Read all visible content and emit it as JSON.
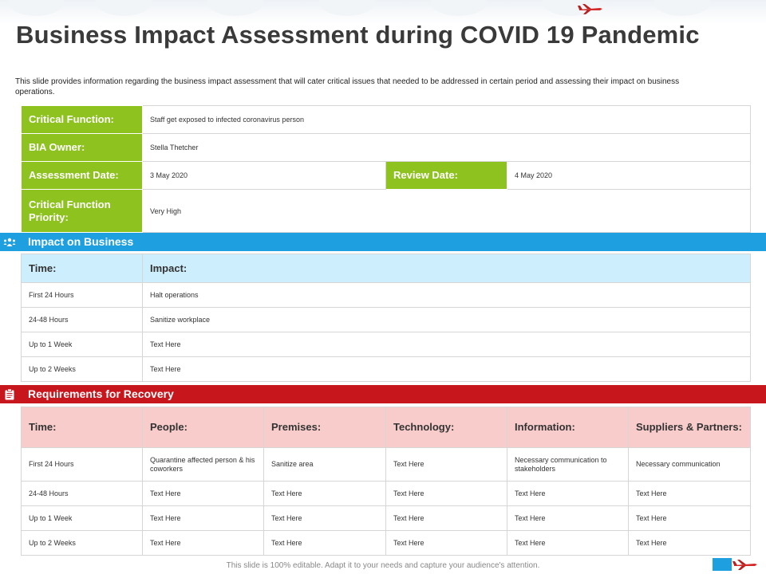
{
  "title": "Business Impact Assessment during COVID 19 Pandemic",
  "description": "This slide provides information regarding the business impact assessment that will cater critical issues that needed to be addressed in certain period and assessing their impact on business operations.",
  "info": {
    "critical_function_label": "Critical Function:",
    "critical_function_value": "Staff get exposed to infected coronavirus person",
    "bia_owner_label": "BIA Owner:",
    "bia_owner_value": "Stella Thetcher",
    "assessment_date_label": "Assessment  Date:",
    "assessment_date_value": "3 May 2020",
    "review_date_label": "Review Date:",
    "review_date_value": "4 May 2020",
    "priority_label": "Critical Function Priority:",
    "priority_value": "Very High"
  },
  "impact": {
    "section_title": "Impact on Business",
    "section_icon": "people-icon",
    "headers": [
      "Time:",
      "Impact:"
    ],
    "rows": [
      [
        "First 24 Hours",
        "Halt operations"
      ],
      [
        "24-48 Hours",
        "Sanitize workplace"
      ],
      [
        "Up to 1 Week",
        "Text Here"
      ],
      [
        "Up to 2 Weeks",
        "Text Here"
      ]
    ]
  },
  "recovery": {
    "section_title": "Requirements for Recovery",
    "section_icon": "clipboard-icon",
    "headers": [
      "Time:",
      "People:",
      "Premises:",
      "Technology:",
      "Information:",
      "Suppliers & Partners:"
    ],
    "rows": [
      [
        "First 24 Hours",
        "Quarantine affected person & his coworkers",
        "Sanitize area",
        "Text Here",
        "Necessary communication to stakeholders",
        "Necessary communication"
      ],
      [
        "24-48 Hours",
        "Text Here",
        "Text Here",
        "Text Here",
        "Text Here",
        "Text Here"
      ],
      [
        "Up to 1 Week",
        "Text Here",
        "Text Here",
        "Text Here",
        "Text Here",
        "Text Here"
      ],
      [
        "Up to 2 Weeks",
        "Text Here",
        "Text Here",
        "Text Here",
        "Text Here",
        "Text Here"
      ]
    ]
  },
  "footer": "This slide is 100% editable. Adapt it to your needs and capture your audience's attention.",
  "colors": {
    "green": "#8dc21f",
    "blue": "#1ea0e0",
    "red": "#c8161d",
    "light_blue": "#cdeefc",
    "light_red": "#f9cccc"
  }
}
